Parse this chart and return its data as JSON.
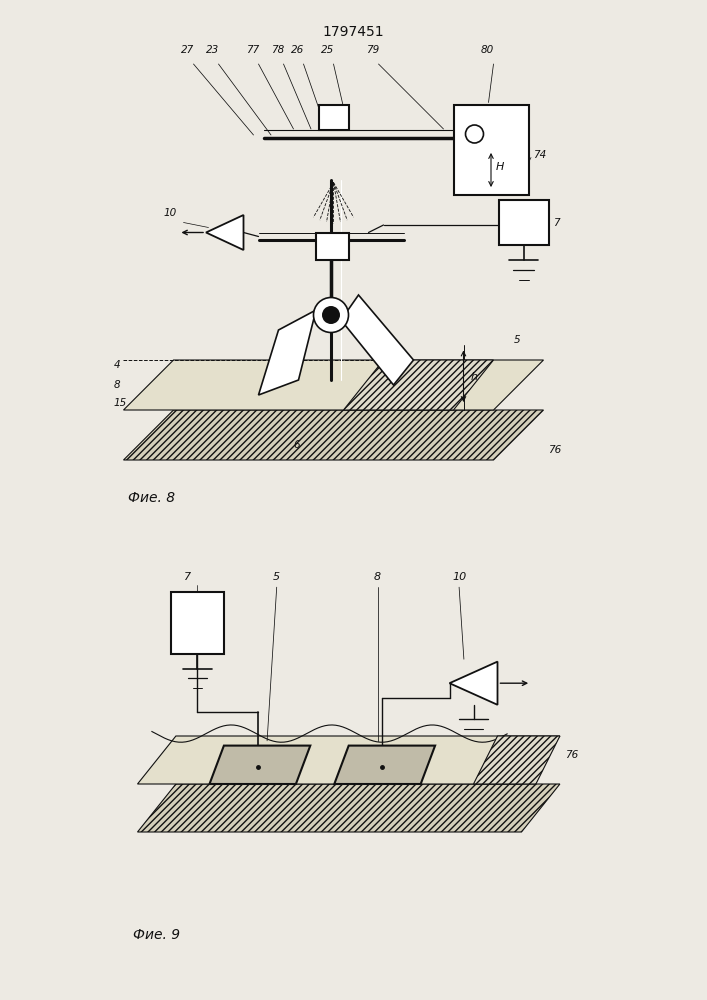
{
  "title": "1797451",
  "fig8_caption": "Фие. 8",
  "fig9_caption": "Фие. 9",
  "bg_color": "#edeae3",
  "line_color": "#111111",
  "soil_face": "#d4cfba",
  "bed_face": "#e4e0cc",
  "plate_face": "#c0bba8"
}
